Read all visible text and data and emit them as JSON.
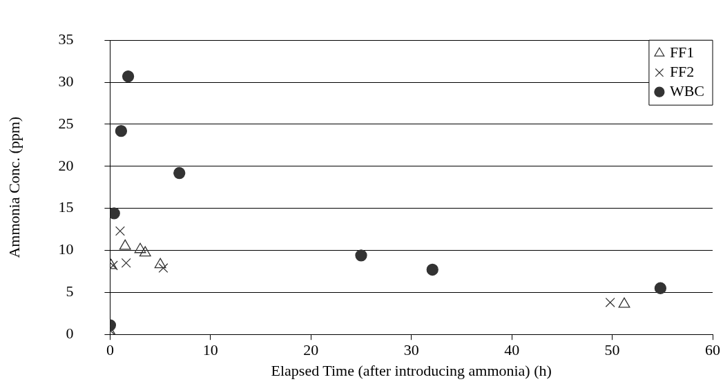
{
  "chart_data": {
    "type": "scatter",
    "xlabel": "Elapsed Time (after introducing ammonia) (h)",
    "ylabel": "Ammonia Conc. (ppm)",
    "xlim": [
      0,
      60
    ],
    "xticks": [
      0,
      10,
      20,
      30,
      40,
      50,
      60
    ],
    "ylim": [
      0,
      35
    ],
    "yticks": [
      0,
      5,
      10,
      15,
      20,
      25,
      30,
      35
    ],
    "grid": "y",
    "legend": "top right",
    "series": [
      {
        "name": "FF1",
        "color": "#333333",
        "marker": "triangle",
        "x": [
          0,
          0.1,
          1.5,
          3.0,
          3.5,
          5.0,
          51.2
        ],
        "values": [
          0.3,
          8.2,
          10.5,
          10.1,
          9.7,
          8.3,
          3.6
        ]
      },
      {
        "name": "FF2",
        "color": "#333333",
        "marker": "cross",
        "x": [
          0,
          0.3,
          1.0,
          1.6,
          5.3,
          49.8
        ],
        "values": [
          0.5,
          8.2,
          12.3,
          8.5,
          7.9,
          3.8
        ]
      },
      {
        "name": "WBC",
        "color": "#333333",
        "marker": "circle",
        "x": [
          0,
          0.4,
          1.1,
          1.8,
          6.9,
          25.0,
          32.1,
          54.8
        ],
        "values": [
          1.1,
          14.4,
          24.2,
          30.7,
          19.2,
          9.4,
          7.7,
          5.5
        ]
      }
    ]
  }
}
